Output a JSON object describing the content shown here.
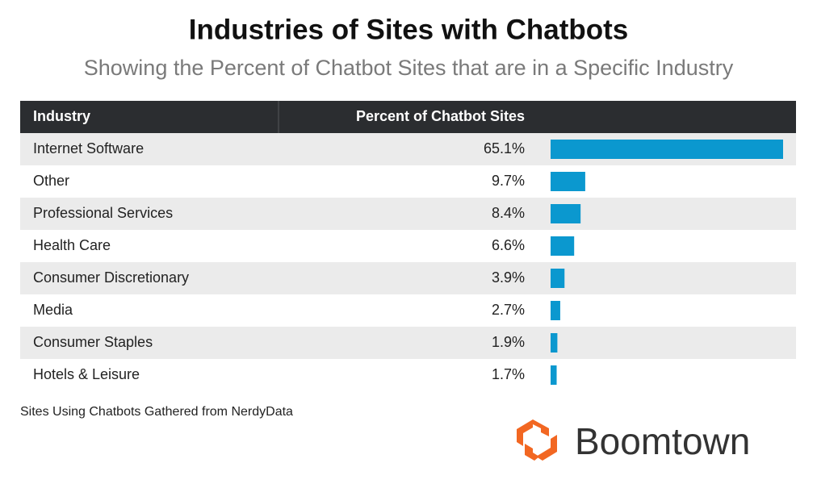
{
  "chart_data": {
    "type": "bar",
    "title": "Industries of Sites with Chatbots",
    "subtitle": "Showing the Percent of Chatbot Sites that are in a Specific Industry",
    "column_headers": [
      "Industry",
      "Percent of Chatbot Sites"
    ],
    "categories": [
      "Internet Software",
      "Other",
      "Professional Services",
      "Health Care",
      "Consumer Discretionary",
      "Media",
      "Consumer Staples",
      "Hotels & Leisure"
    ],
    "values": [
      65.1,
      9.7,
      8.4,
      6.6,
      3.9,
      2.7,
      1.9,
      1.7
    ],
    "value_labels": [
      "65.1%",
      "9.7%",
      "8.4%",
      "6.6%",
      "3.9%",
      "2.7%",
      "1.9%",
      "1.7%"
    ],
    "color": "#0b98cf",
    "note": "Sites Using Chatbots Gathered from NerdyData",
    "logo": "Boomtown"
  }
}
